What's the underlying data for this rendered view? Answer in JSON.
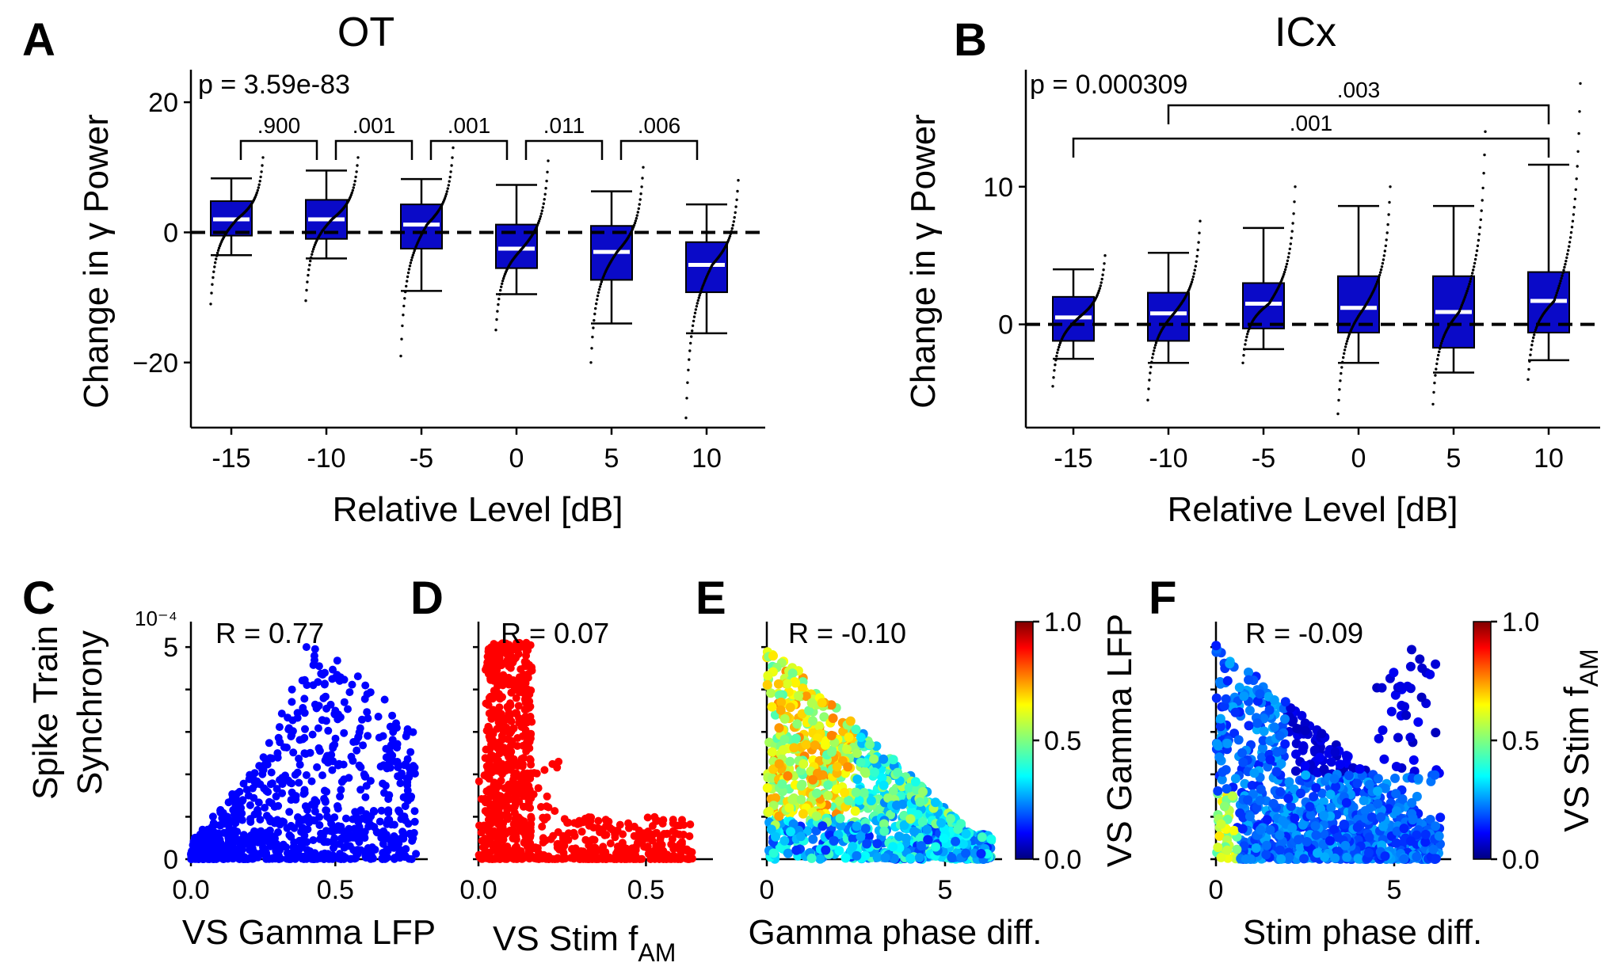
{
  "panels": {
    "A": {
      "label": "A",
      "title": "OT",
      "xlabel": "Relative Level [dB]",
      "ylabel": "Change in γ Power",
      "pvalue": "p = 3.59e-83"
    },
    "B": {
      "label": "B",
      "title": "ICx",
      "xlabel": "Relative Level [dB]",
      "ylabel": "Change in γ Power",
      "pvalue": "p = 0.000309"
    },
    "C": {
      "label": "C",
      "xlabel": "VS Gamma LFP",
      "ylabel_line1": "Spike Train",
      "ylabel_line2": "Synchrony",
      "r": "R = 0.77",
      "exponent": "10⁻⁴"
    },
    "D": {
      "label": "D",
      "xlabel_main": "VS Stim f",
      "xlabel_sub": "AM",
      "r": "R = 0.07"
    },
    "E": {
      "label": "E",
      "xlabel": "Gamma phase diff.",
      "r": "R = -0.10",
      "colorbar_label": "VS Gamma LFP"
    },
    "F": {
      "label": "F",
      "xlabel": "Stim phase diff.",
      "r": "R = -0.09",
      "colorbar_label_main": "VS Stim f",
      "colorbar_label_sub": "AM"
    }
  },
  "colors": {
    "box_fill": "#0a0ac8",
    "median": "#ffffff",
    "scatter_C": "#0000ff",
    "scatter_D": "#ff0000"
  },
  "chart_data": [
    {
      "panel": "A",
      "type": "box",
      "categories": [
        "-15",
        "-10",
        "-5",
        "0",
        "5",
        "10"
      ],
      "ylim": [
        -30,
        25
      ],
      "yticks": [
        20,
        0,
        -20
      ],
      "ytick_labels": [
        "20",
        "0",
        "−20"
      ],
      "zero_line": true,
      "boxes": [
        {
          "whisker_low": -3.5,
          "q1": -0.5,
          "median": 2.0,
          "q3": 4.8,
          "whisker_high": 8.3,
          "points_min": -11,
          "points_max": 11.5
        },
        {
          "whisker_low": -4.0,
          "q1": -1.0,
          "median": 2.0,
          "q3": 5.0,
          "whisker_high": 9.5,
          "points_min": -10.5,
          "points_max": 11.5
        },
        {
          "whisker_low": -9.0,
          "q1": -2.5,
          "median": 1.2,
          "q3": 4.3,
          "whisker_high": 8.2,
          "points_min": -19,
          "points_max": 13
        },
        {
          "whisker_low": -9.5,
          "q1": -5.5,
          "median": -2.5,
          "q3": 1.2,
          "whisker_high": 7.3,
          "points_min": -15,
          "points_max": 11
        },
        {
          "whisker_low": -14.0,
          "q1": -7.3,
          "median": -3.0,
          "q3": 1.0,
          "whisker_high": 6.3,
          "points_min": -20,
          "points_max": 10
        },
        {
          "whisker_low": -15.5,
          "q1": -9.2,
          "median": -5.0,
          "q3": -1.5,
          "whisker_high": 4.3,
          "points_min": -28.5,
          "points_max": 8
        }
      ],
      "comparisons": [
        {
          "from": "-15",
          "to": "-10",
          "label": ".900"
        },
        {
          "from": "-10",
          "to": "-5",
          "label": ".001"
        },
        {
          "from": "-5",
          "to": "0",
          "label": ".001"
        },
        {
          "from": "0",
          "to": "5",
          "label": ".011"
        },
        {
          "from": "5",
          "to": "10",
          "label": ".006"
        }
      ]
    },
    {
      "panel": "B",
      "type": "box",
      "categories": [
        "-15",
        "-10",
        "-5",
        "0",
        "5",
        "10"
      ],
      "ylim": [
        -7.5,
        18.5
      ],
      "yticks": [
        10,
        0
      ],
      "ytick_labels": [
        "10",
        "0"
      ],
      "zero_line": true,
      "boxes": [
        {
          "whisker_low": -2.5,
          "q1": -1.2,
          "median": 0.5,
          "q3": 2.0,
          "whisker_high": 4.0,
          "points_min": -4.5,
          "points_max": 5
        },
        {
          "whisker_low": -2.8,
          "q1": -1.2,
          "median": 0.8,
          "q3": 2.3,
          "whisker_high": 5.2,
          "points_min": -5.5,
          "points_max": 7.5
        },
        {
          "whisker_low": -1.8,
          "q1": -0.3,
          "median": 1.5,
          "q3": 3.0,
          "whisker_high": 7.0,
          "points_min": -2.8,
          "points_max": 10
        },
        {
          "whisker_low": -2.8,
          "q1": -0.6,
          "median": 1.2,
          "q3": 3.5,
          "whisker_high": 8.6,
          "points_min": -6.5,
          "points_max": 10
        },
        {
          "whisker_low": -3.5,
          "q1": -1.7,
          "median": 0.9,
          "q3": 3.5,
          "whisker_high": 8.6,
          "points_min": -5.8,
          "points_max": 14
        },
        {
          "whisker_low": -2.6,
          "q1": -0.6,
          "median": 1.7,
          "q3": 3.8,
          "whisker_high": 11.6,
          "points_min": -4,
          "points_max": 17.5
        }
      ],
      "comparisons": [
        {
          "from": "-10",
          "to": "10",
          "label": ".003"
        },
        {
          "from": "-15",
          "to": "10",
          "label": ".001"
        }
      ]
    },
    {
      "panel": "C",
      "type": "scatter",
      "xlim": [
        0,
        0.82
      ],
      "ylim": [
        0,
        5.6
      ],
      "xticks": [
        0.0,
        0.5
      ],
      "xtick_labels": [
        "0.0",
        "0.5"
      ],
      "yticks": [
        0,
        5
      ],
      "ytick_labels": [
        "0",
        "5"
      ],
      "color": "#0000ff",
      "note_points": [
        [
          0.05,
          0.3
        ],
        [
          0.1,
          0.8
        ],
        [
          0.2,
          1.5
        ],
        [
          0.3,
          2.5
        ],
        [
          0.35,
          4.0
        ],
        [
          0.4,
          5.0
        ],
        [
          0.5,
          3.5
        ],
        [
          0.6,
          2.0
        ],
        [
          0.7,
          3.0
        ],
        [
          0.77,
          2.2
        ]
      ]
    },
    {
      "panel": "D",
      "type": "scatter",
      "xlim": [
        0,
        0.7
      ],
      "ylim": [
        0,
        5.6
      ],
      "xticks": [
        0.0,
        0.5
      ],
      "xtick_labels": [
        "0.0",
        "0.5"
      ],
      "color": "#ff0000"
    },
    {
      "panel": "E",
      "type": "scatter",
      "xlim": [
        0,
        6.6
      ],
      "ylim": [
        0,
        5.6
      ],
      "xticks": [
        0,
        5
      ],
      "xtick_labels": [
        "0",
        "5"
      ],
      "colorbar": {
        "min": 0.0,
        "max": 1.0,
        "ticks": [
          "1.0",
          "0.5",
          "0.0"
        ]
      }
    },
    {
      "panel": "F",
      "type": "scatter",
      "xlim": [
        0,
        6.6
      ],
      "ylim": [
        0,
        5.6
      ],
      "xticks": [
        0,
        5
      ],
      "xtick_labels": [
        "0",
        "5"
      ],
      "colorbar": {
        "min": 0.0,
        "max": 1.0,
        "ticks": [
          "1.0",
          "0.5",
          "0.0"
        ]
      }
    }
  ]
}
